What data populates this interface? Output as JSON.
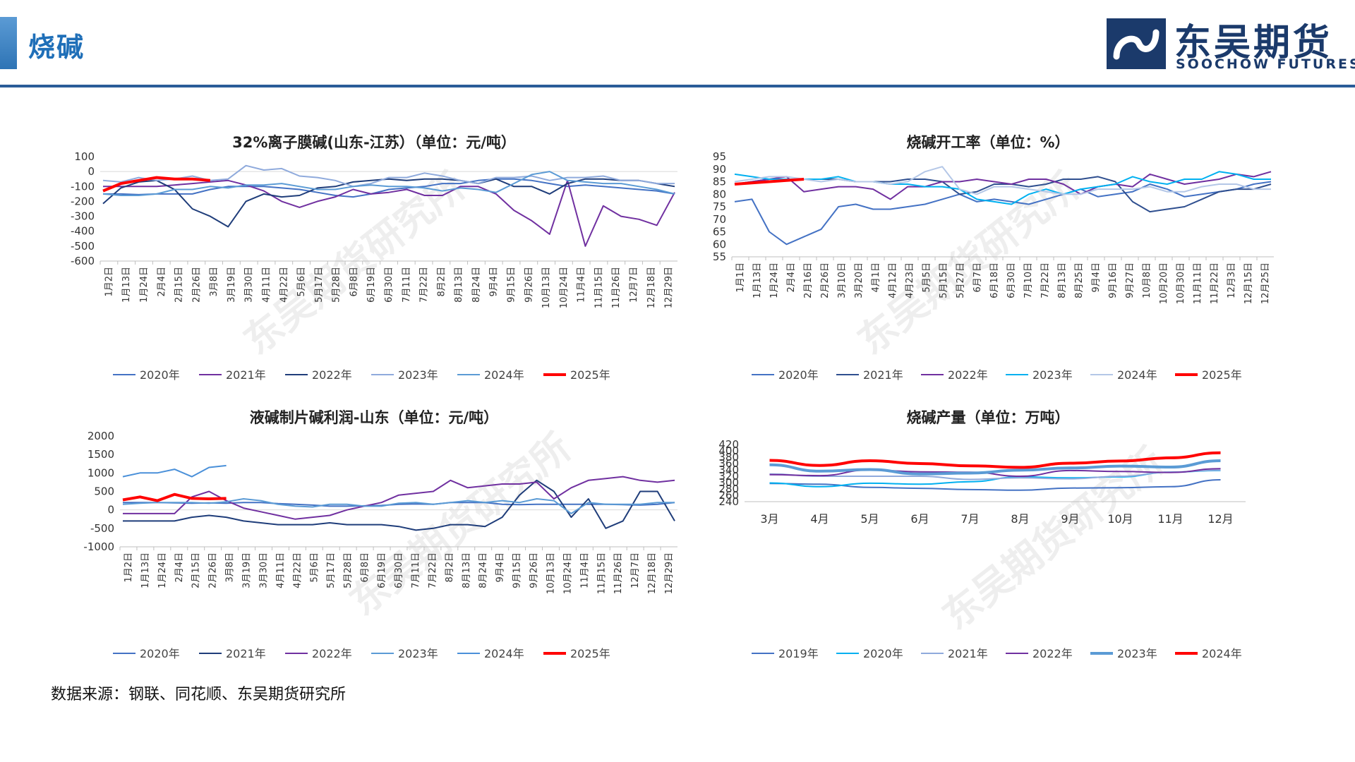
{
  "header": {
    "title": "烧碱",
    "logo_cn": "东吴期货",
    "logo_en": "SOOCHOW FUTURES"
  },
  "footer": {
    "source": "数据来源：钢联、同花顺、东吴期货研究所"
  },
  "watermark": "东吴期货研究所",
  "colors": {
    "accent": "#2a5c98",
    "series_2025": "#ff0000"
  },
  "chart_data": [
    {
      "id": "c1",
      "type": "line",
      "title": "32%离子膜碱(山东-江苏）（单位：元/吨）",
      "yticks": [
        100,
        0,
        -100,
        -200,
        -300,
        -400,
        -500,
        -600
      ],
      "ylim": [
        -600,
        100
      ],
      "xticks": [
        "1月2日",
        "1月13日",
        "1月24日",
        "2月4日",
        "2月15日",
        "2月26日",
        "3月8日",
        "3月19日",
        "3月30日",
        "4月11日",
        "4月22日",
        "5月6日",
        "5月17日",
        "5月28日",
        "6月8日",
        "6月19日",
        "6月30日",
        "7月11日",
        "7月22日",
        "8月2日",
        "8月13日",
        "8月24日",
        "9月4日",
        "9月15日",
        "9月26日",
        "10月13日",
        "10月24日",
        "11月4日",
        "11月15日",
        "11月26日",
        "12月7日",
        "12月18日",
        "12月29日"
      ],
      "series": [
        {
          "name": "2020年",
          "color": "#4472c4",
          "width": 2,
          "values": [
            -150,
            -150,
            -155,
            -150,
            -150,
            -150,
            -120,
            -100,
            -100,
            -100,
            -110,
            -120,
            -140,
            -160,
            -170,
            -150,
            -120,
            -110,
            -100,
            -80,
            -80,
            -60,
            -50,
            -50,
            -60,
            -80,
            -100,
            -90,
            -100,
            -110,
            -120,
            -130,
            -150
          ]
        },
        {
          "name": "2021年",
          "color": "#7030a0",
          "width": 2,
          "values": [
            -100,
            -100,
            -100,
            -100,
            -90,
            -80,
            -70,
            -60,
            -90,
            -130,
            -200,
            -240,
            -200,
            -170,
            -120,
            -150,
            -140,
            -120,
            -160,
            -160,
            -100,
            -100,
            -150,
            -260,
            -330,
            -420,
            -60,
            -500,
            -230,
            -300,
            -320,
            -360,
            -140
          ]
        },
        {
          "name": "2022年",
          "color": "#1f3d7a",
          "width": 2,
          "values": [
            -215,
            -110,
            -70,
            -60,
            -120,
            -250,
            -300,
            -370,
            -200,
            -150,
            -170,
            -160,
            -110,
            -100,
            -70,
            -60,
            -50,
            -60,
            -50,
            -50,
            -60,
            -80,
            -50,
            -100,
            -100,
            -150,
            -80,
            -50,
            -50,
            -60,
            -60,
            -80,
            -100
          ]
        },
        {
          "name": "2023年",
          "color": "#8faadc",
          "width": 2,
          "values": [
            -60,
            -70,
            -40,
            -60,
            -50,
            -30,
            -60,
            -50,
            40,
            10,
            20,
            -30,
            -40,
            -60,
            -100,
            -80,
            -40,
            -40,
            -10,
            -30,
            -60,
            -80,
            -40,
            -40,
            -30,
            -60,
            -40,
            -40,
            -30,
            -60,
            -60,
            -80,
            -80
          ]
        },
        {
          "name": "2024年",
          "color": "#5b9bd5",
          "width": 2,
          "values": [
            -150,
            -160,
            -160,
            -150,
            -120,
            -120,
            -100,
            -110,
            -90,
            -90,
            -80,
            -100,
            -120,
            -120,
            -100,
            -90,
            -100,
            -100,
            -110,
            -130,
            -110,
            -120,
            -140,
            -80,
            -20,
            0,
            -60,
            -70,
            -80,
            -80,
            -100,
            -120,
            -150
          ]
        },
        {
          "name": "2025年",
          "color": "#ff0000",
          "width": 4,
          "values": [
            -130,
            -80,
            -60,
            -40,
            -50,
            -50,
            -60
          ]
        }
      ]
    },
    {
      "id": "c2",
      "type": "line",
      "title": "烧碱开工率（单位：%）",
      "yticks": [
        95,
        90,
        85,
        80,
        75,
        70,
        65,
        60,
        55
      ],
      "ylim": [
        55,
        95
      ],
      "xticks": [
        "1月1日",
        "1月13日",
        "1月24日",
        "2月4日",
        "2月16日",
        "2月26日",
        "3月10日",
        "3月20日",
        "4月1日",
        "4月12日",
        "4月23日",
        "5月5日",
        "5月15日",
        "5月27日",
        "6月7日",
        "6月18日",
        "6月30日",
        "7月10日",
        "7月22日",
        "8月13日",
        "8月25日",
        "9月4日",
        "9月16日",
        "9月27日",
        "10月8日",
        "10月20日",
        "10月30日",
        "11月11日",
        "11月22日",
        "12月3日",
        "12月15日",
        "12月25日"
      ],
      "series": [
        {
          "name": "2020年",
          "color": "#4472c4",
          "width": 2,
          "values": [
            77,
            78,
            65,
            60,
            63,
            66,
            75,
            76,
            74,
            74,
            75,
            76,
            78,
            80,
            77,
            78,
            77,
            76,
            78,
            80,
            82,
            79,
            80,
            81,
            84,
            82,
            79,
            80,
            81,
            82,
            84,
            85
          ]
        },
        {
          "name": "2021年",
          "color": "#2f4f8f",
          "width": 2,
          "values": [
            84,
            85,
            86,
            86,
            86,
            86,
            86,
            85,
            85,
            85,
            86,
            86,
            85,
            80,
            81,
            84,
            84,
            83,
            84,
            86,
            86,
            87,
            85,
            77,
            73,
            74,
            75,
            78,
            81,
            82,
            82,
            84
          ]
        },
        {
          "name": "2022年",
          "color": "#7030a0",
          "width": 2,
          "values": [
            84,
            85,
            86,
            87,
            81,
            82,
            83,
            83,
            82,
            78,
            83,
            83,
            85,
            85,
            86,
            85,
            84,
            86,
            86,
            84,
            80,
            83,
            84,
            83,
            88,
            86,
            84,
            85,
            86,
            88,
            87,
            89
          ]
        },
        {
          "name": "2023年",
          "color": "#00b0f0",
          "width": 2,
          "values": [
            88,
            87,
            86,
            86,
            86,
            86,
            87,
            85,
            85,
            84,
            84,
            83,
            83,
            82,
            78,
            77,
            76,
            80,
            82,
            80,
            82,
            83,
            84,
            87,
            85,
            84,
            86,
            86,
            89,
            88,
            86,
            86
          ]
        },
        {
          "name": "2024年",
          "color": "#b4c7e7",
          "width": 2,
          "values": [
            85,
            86,
            87,
            87,
            86,
            85,
            86,
            85,
            85,
            84,
            85,
            89,
            91,
            82,
            80,
            83,
            83,
            82,
            81,
            80,
            80,
            82,
            82,
            82,
            83,
            81,
            81,
            83,
            84,
            84,
            82,
            82
          ]
        },
        {
          "name": "2025年",
          "color": "#ff0000",
          "width": 4,
          "values": [
            84,
            84.5,
            85,
            85.5,
            86
          ]
        }
      ]
    },
    {
      "id": "c3",
      "type": "line",
      "title": "液碱制片碱利润-山东（单位：元/吨）",
      "yticks": [
        2000,
        1500,
        1000,
        500,
        0,
        -500,
        -1000
      ],
      "ylim": [
        -1000,
        2000
      ],
      "xticks": [
        "1月2日",
        "1月13日",
        "1月24日",
        "2月4日",
        "2月15日",
        "2月26日",
        "3月8日",
        "3月19日",
        "3月30日",
        "4月11日",
        "4月22日",
        "5月6日",
        "5月17日",
        "5月28日",
        "6月8日",
        "6月19日",
        "6月30日",
        "7月11日",
        "7月22日",
        "8月2日",
        "8月13日",
        "8月24日",
        "9月4日",
        "9月15日",
        "9月26日",
        "10月13日",
        "10月24日",
        "11月4日",
        "11月15日",
        "11月26日",
        "12月7日",
        "12月18日",
        "12月29日"
      ],
      "series": [
        {
          "name": "2020年",
          "color": "#4472c4",
          "width": 2,
          "values": [
            200,
            200,
            200,
            190,
            180,
            190,
            180,
            200,
            200,
            170,
            150,
            130,
            100,
            100,
            110,
            120,
            150,
            160,
            150,
            200,
            200,
            200,
            150,
            140,
            150,
            150,
            150,
            150,
            150,
            140,
            130,
            150,
            200
          ]
        },
        {
          "name": "2021年",
          "color": "#1f3d7a",
          "width": 2,
          "values": [
            -300,
            -300,
            -300,
            -300,
            -200,
            -150,
            -200,
            -300,
            -350,
            -400,
            -400,
            -400,
            -350,
            -400,
            -400,
            -400,
            -450,
            -550,
            -500,
            -400,
            -400,
            -450,
            -200,
            400,
            800,
            500,
            -200,
            300,
            -500,
            -300,
            500,
            500,
            -300
          ]
        },
        {
          "name": "2022年",
          "color": "#7030a0",
          "width": 2,
          "values": [
            -100,
            -100,
            -100,
            -100,
            350,
            500,
            250,
            50,
            -50,
            -150,
            -250,
            -200,
            -150,
            0,
            100,
            200,
            400,
            450,
            500,
            800,
            600,
            650,
            700,
            700,
            750,
            300,
            600,
            800,
            850,
            900,
            800,
            750,
            800
          ]
        },
        {
          "name": "2023年",
          "color": "#5b9bd5",
          "width": 2,
          "values": [
            150,
            180,
            200,
            200,
            200,
            180,
            220,
            300,
            250,
            150,
            100,
            80,
            150,
            150,
            100,
            100,
            180,
            200,
            150,
            200,
            250,
            200,
            250,
            200,
            300,
            250,
            -100,
            200,
            150,
            150,
            150,
            200,
            200
          ]
        },
        {
          "name": "2024年",
          "color": "#4a90d9",
          "width": 2,
          "values": [
            900,
            1000,
            1000,
            1100,
            900,
            1150,
            1200
          ]
        },
        {
          "name": "2025年",
          "color": "#ff0000",
          "width": 4,
          "values": [
            270,
            350,
            250,
            420,
            310,
            300,
            310
          ]
        }
      ]
    },
    {
      "id": "c4",
      "type": "line",
      "title": "烧碱产量（单位：万吨）",
      "yticks": [
        420,
        400,
        380,
        360,
        340,
        320,
        300,
        280,
        260,
        240
      ],
      "ylim": [
        240,
        420
      ],
      "categories": [
        "3月",
        "4月",
        "5月",
        "6月",
        "7月",
        "8月",
        "9月",
        "10月",
        "11月",
        "12月"
      ],
      "series": [
        {
          "name": "2019年",
          "color": "#4472c4",
          "width": 2,
          "values": [
            297,
            295,
            285,
            282,
            278,
            276,
            283,
            284,
            287,
            309
          ]
        },
        {
          "name": "2020年",
          "color": "#00b0f0",
          "width": 2,
          "values": [
            299,
            287,
            298,
            295,
            303,
            318,
            315,
            318,
            333,
            338
          ]
        },
        {
          "name": "2021年",
          "color": "#8faadc",
          "width": 2,
          "values": [
            327,
            320,
            320,
            320,
            310,
            315,
            312,
            320,
            333,
            339
          ]
        },
        {
          "name": "2022年",
          "color": "#7030a0",
          "width": 2,
          "values": [
            325,
            322,
            340,
            334,
            333,
            320,
            338,
            335,
            332,
            344
          ]
        },
        {
          "name": "2023年",
          "color": "#5b9bd5",
          "width": 4,
          "values": [
            356,
            336,
            341,
            327,
            330,
            339,
            346,
            352,
            349,
            369
          ]
        },
        {
          "name": "2024年",
          "color": "#ff0000",
          "width": 4,
          "values": [
            370,
            354,
            369,
            360,
            353,
            348,
            361,
            368,
            378,
            394
          ]
        }
      ]
    }
  ]
}
